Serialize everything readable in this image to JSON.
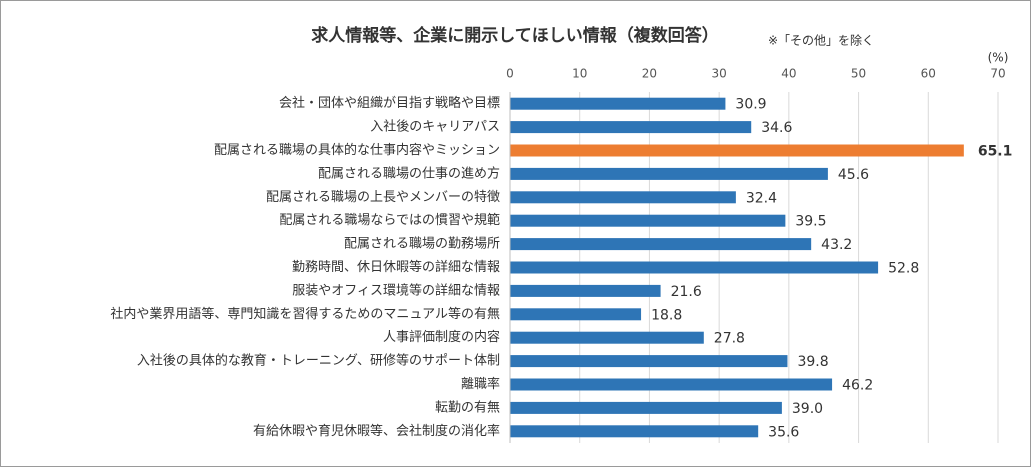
{
  "chart_data": {
    "type": "hbar",
    "title": "求人情報等、企業に開示してほしい情報（複数回答）",
    "subtitle": "※「その他」を除く",
    "unit_label": "(%)",
    "categories": [
      "会社・団体や組織が目指す戦略や目標",
      "入社後のキャリアパス",
      "配属される職場の具体的な仕事内容やミッション",
      "配属される職場の仕事の進め方",
      "配属される職場の上長やメンバーの特徴",
      "配属される職場ならではの慣習や規範",
      "配属される職場の勤務場所",
      "勤務時間、休日休暇等の詳細な情報",
      "服装やオフィス環境等の詳細な情報",
      "社内や業界用語等、専門知識を習得するためのマニュアル等の有無",
      "人事評価制度の内容",
      "入社後の具体的な教育・トレーニング、研修等のサポート体制",
      "離職率",
      "転勤の有無",
      "有給休暇や育児休暇等、会社制度の消化率"
    ],
    "values": [
      30.9,
      34.6,
      65.1,
      45.6,
      32.4,
      39.5,
      43.2,
      52.8,
      21.6,
      18.8,
      27.8,
      39.8,
      46.2,
      39.0,
      35.6
    ],
    "value_labels": [
      "30.9",
      "34.6",
      "65.1",
      "45.6",
      "32.4",
      "39.5",
      "43.2",
      "52.8",
      "21.6",
      "18.8",
      "27.8",
      "39.8",
      "46.2",
      "39.0",
      "35.6"
    ],
    "colors": [
      "#2e75b6",
      "#2e75b6",
      "#ed7d31",
      "#2e75b6",
      "#2e75b6",
      "#2e75b6",
      "#2e75b6",
      "#2e75b6",
      "#2e75b6",
      "#2e75b6",
      "#2e75b6",
      "#2e75b6",
      "#2e75b6",
      "#2e75b6",
      "#2e75b6"
    ],
    "value_label_colors": [
      "#333333",
      "#333333",
      "#e00000",
      "#333333",
      "#333333",
      "#333333",
      "#333333",
      "#333333",
      "#333333",
      "#333333",
      "#333333",
      "#333333",
      "#333333",
      "#333333",
      "#333333"
    ],
    "xlim": [
      0,
      70
    ],
    "xticks": [
      0,
      10,
      20,
      30,
      40,
      50,
      60,
      70
    ],
    "grid": true
  }
}
